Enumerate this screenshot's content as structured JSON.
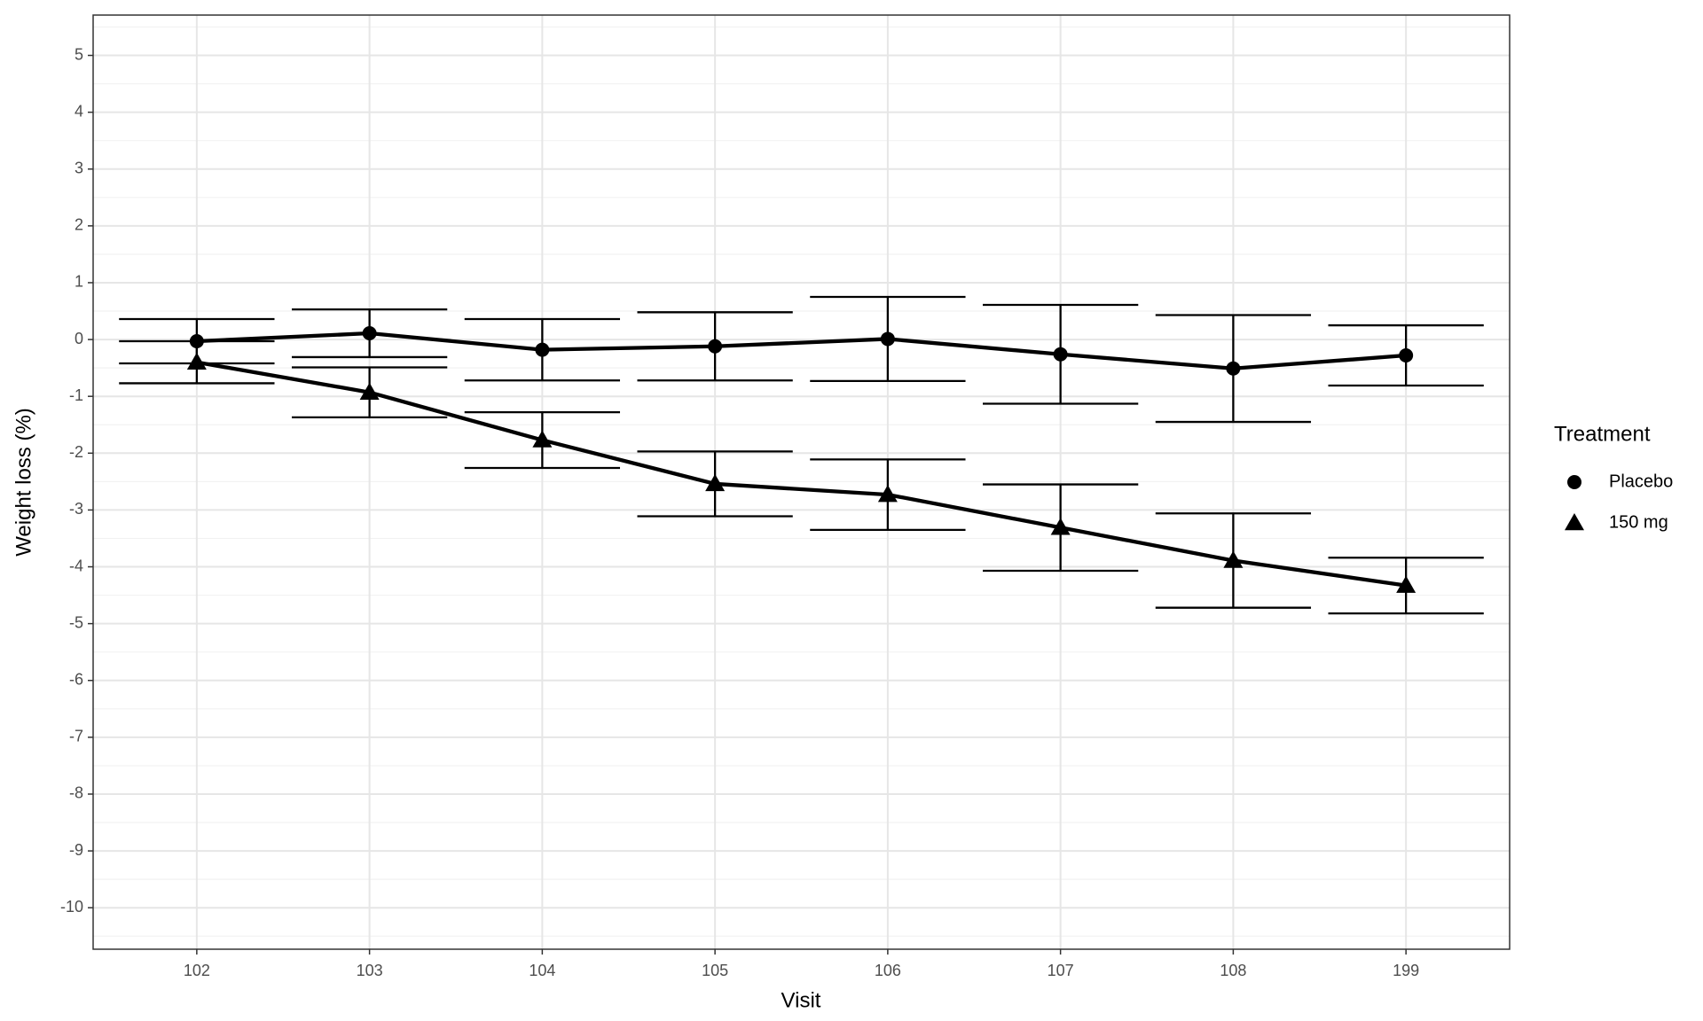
{
  "chart_data": {
    "type": "line",
    "x_label": "Visit",
    "y_label": "Weight loss (%)",
    "legend_title": "Treatment",
    "categories": [
      "102",
      "103",
      "104",
      "105",
      "106",
      "107",
      "108",
      "199"
    ],
    "series": [
      {
        "name": "Placebo",
        "color": "#000000",
        "marker": "circle",
        "values": [
          -0.03,
          0.11,
          -0.18,
          -0.12,
          0.01,
          -0.26,
          -0.51,
          -0.28
        ],
        "errors": [
          0.39,
          0.42,
          0.54,
          0.6,
          0.74,
          0.87,
          0.94,
          0.53
        ]
      },
      {
        "name": "150 mg",
        "color": "#000000",
        "marker": "triangle",
        "values": [
          -0.4,
          -0.93,
          -1.77,
          -2.54,
          -2.73,
          -3.31,
          -3.89,
          -4.33
        ],
        "errors": [
          0.37,
          0.44,
          0.49,
          0.57,
          0.62,
          0.76,
          0.83,
          0.49
        ]
      }
    ],
    "ylim": [
      -10.73,
      5.71
    ],
    "yticks": [
      -10,
      -9,
      -8,
      -7,
      -6,
      -5,
      -4,
      -3,
      -2,
      -1,
      0,
      1,
      2,
      3,
      4,
      5
    ],
    "grid": true,
    "minor_grid": true,
    "legend": "right"
  }
}
